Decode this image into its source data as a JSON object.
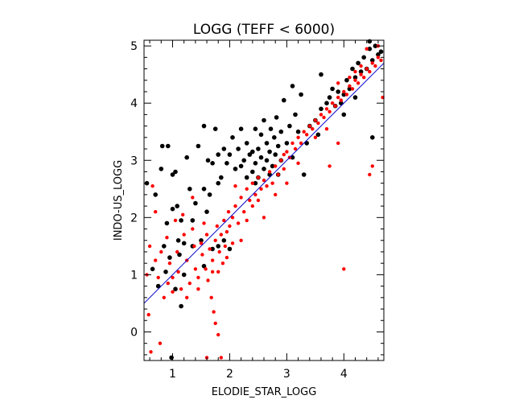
{
  "chart_data": {
    "type": "scatter",
    "title": "LOGG (TEFF < 6000)",
    "xlabel": "ELODIE_STAR_LOGG",
    "ylabel": "INDO-US_LOGG",
    "xlim": [
      0.5,
      4.7
    ],
    "ylim": [
      -0.5,
      5.1
    ],
    "xticks": [
      1,
      2,
      3,
      4
    ],
    "yticks": [
      0,
      1,
      2,
      3,
      4,
      5
    ],
    "grid": false,
    "reference_line": {
      "from": [
        0.5,
        0.5
      ],
      "to": [
        4.7,
        4.7
      ],
      "color": "#0000cc"
    },
    "series": [
      {
        "color": "#000000",
        "points": [
          [
            0.55,
            2.6
          ],
          [
            0.65,
            1.1
          ],
          [
            0.7,
            2.4
          ],
          [
            0.75,
            0.8
          ],
          [
            0.8,
            2.85
          ],
          [
            0.82,
            3.25
          ],
          [
            0.85,
            1.5
          ],
          [
            0.88,
            1.05
          ],
          [
            0.9,
            1.9
          ],
          [
            0.92,
            3.25
          ],
          [
            0.95,
            1.3
          ],
          [
            1.0,
            2.15
          ],
          [
            1.0,
            2.75
          ],
          [
            1.05,
            0.75
          ],
          [
            1.05,
            2.8
          ],
          [
            1.08,
            2.2
          ],
          [
            1.1,
            1.6
          ],
          [
            1.12,
            1.35
          ],
          [
            1.15,
            1.95
          ],
          [
            1.2,
            1.0
          ],
          [
            1.2,
            1.55
          ],
          [
            1.25,
            3.05
          ],
          [
            1.3,
            2.5
          ],
          [
            1.35,
            1.5
          ],
          [
            1.35,
            1.95
          ],
          [
            1.4,
            2.25
          ],
          [
            1.45,
            3.25
          ],
          [
            1.5,
            1.6
          ],
          [
            1.55,
            2.5
          ],
          [
            1.55,
            3.6
          ],
          [
            1.6,
            2.1
          ],
          [
            1.62,
            3.0
          ],
          [
            1.65,
            2.4
          ],
          [
            1.7,
            1.45
          ],
          [
            1.75,
            3.55
          ],
          [
            1.8,
            2.6
          ],
          [
            1.8,
            3.1
          ],
          [
            1.85,
            2.7
          ],
          [
            1.9,
            1.6
          ],
          [
            1.9,
            3.2
          ],
          [
            1.95,
            2.95
          ],
          [
            2.0,
            3.1
          ],
          [
            2.05,
            3.4
          ],
          [
            2.1,
            2.85
          ],
          [
            2.15,
            3.2
          ],
          [
            2.2,
            2.9
          ],
          [
            2.25,
            3.0
          ],
          [
            2.3,
            3.3
          ],
          [
            2.3,
            2.7
          ],
          [
            2.35,
            3.1
          ],
          [
            2.4,
            2.8
          ],
          [
            2.4,
            3.15
          ],
          [
            2.45,
            3.55
          ],
          [
            2.45,
            2.95
          ],
          [
            2.5,
            3.2
          ],
          [
            2.5,
            2.7
          ],
          [
            2.55,
            3.05
          ],
          [
            2.55,
            3.45
          ],
          [
            2.6,
            2.85
          ],
          [
            2.6,
            3.7
          ],
          [
            2.65,
            3.0
          ],
          [
            2.65,
            3.3
          ],
          [
            2.7,
            2.75
          ],
          [
            2.7,
            3.15
          ],
          [
            2.72,
            3.55
          ],
          [
            2.75,
            2.9
          ],
          [
            2.78,
            3.4
          ],
          [
            2.8,
            3.1
          ],
          [
            2.82,
            3.75
          ],
          [
            2.85,
            3.25
          ],
          [
            2.85,
            2.75
          ],
          [
            2.9,
            3.5
          ],
          [
            2.9,
            3.0
          ],
          [
            2.95,
            4.05
          ],
          [
            3.0,
            3.3
          ],
          [
            3.05,
            3.6
          ],
          [
            3.1,
            3.05
          ],
          [
            3.15,
            3.8
          ],
          [
            3.2,
            3.5
          ],
          [
            3.25,
            4.15
          ],
          [
            3.3,
            2.75
          ],
          [
            3.35,
            3.3
          ],
          [
            3.4,
            3.6
          ],
          [
            3.5,
            3.7
          ],
          [
            3.6,
            3.9
          ],
          [
            3.7,
            4.0
          ],
          [
            3.75,
            4.1
          ],
          [
            3.8,
            4.25
          ],
          [
            3.85,
            3.95
          ],
          [
            3.9,
            4.2
          ],
          [
            3.95,
            4.0
          ],
          [
            4.0,
            4.15
          ],
          [
            4.05,
            4.4
          ],
          [
            4.1,
            4.25
          ],
          [
            4.15,
            4.6
          ],
          [
            4.2,
            4.45
          ],
          [
            4.25,
            4.7
          ],
          [
            4.3,
            4.55
          ],
          [
            4.35,
            4.8
          ],
          [
            4.4,
            4.6
          ],
          [
            4.45,
            4.95
          ],
          [
            4.5,
            4.75
          ],
          [
            4.55,
            5.0
          ],
          [
            4.6,
            4.85
          ],
          [
            4.65,
            4.9
          ],
          [
            4.5,
            3.4
          ],
          [
            4.0,
            3.8
          ],
          [
            2.45,
            2.6
          ],
          [
            1.55,
            1.15
          ],
          [
            1.15,
            0.45
          ],
          [
            1.8,
            1.5
          ],
          [
            2.0,
            1.45
          ],
          [
            3.1,
            4.3
          ],
          [
            3.6,
            4.5
          ],
          [
            2.2,
            3.55
          ],
          [
            0.98,
            -0.45
          ],
          [
            1.7,
            2.95
          ],
          [
            3.55,
            3.45
          ],
          [
            4.45,
            5.08
          ],
          [
            4.2,
            4.1
          ]
        ]
      },
      {
        "color": "#ff0000",
        "points": [
          [
            0.55,
            1.0
          ],
          [
            0.58,
            0.3
          ],
          [
            0.6,
            1.5
          ],
          [
            0.62,
            -0.35
          ],
          [
            0.65,
            2.55
          ],
          [
            0.7,
            1.25
          ],
          [
            0.75,
            0.95
          ],
          [
            0.78,
            -0.2
          ],
          [
            0.8,
            1.4
          ],
          [
            0.85,
            0.6
          ],
          [
            0.9,
            1.65
          ],
          [
            0.92,
            0.85
          ],
          [
            0.95,
            1.2
          ],
          [
            1.0,
            0.7
          ],
          [
            1.05,
            1.95
          ],
          [
            1.08,
            1.4
          ],
          [
            1.1,
            1.05
          ],
          [
            1.15,
            0.75
          ],
          [
            1.18,
            2.05
          ],
          [
            1.2,
            1.7
          ],
          [
            1.25,
            1.25
          ],
          [
            1.3,
            0.85
          ],
          [
            1.35,
            1.8
          ],
          [
            1.38,
            1.5
          ],
          [
            1.4,
            1.1
          ],
          [
            1.45,
            0.95
          ],
          [
            1.5,
            1.55
          ],
          [
            1.52,
            1.35
          ],
          [
            1.55,
            1.9
          ],
          [
            1.58,
            1.1
          ],
          [
            1.6,
            1.7
          ],
          [
            1.62,
            0.9
          ],
          [
            1.65,
            1.45
          ],
          [
            1.68,
            0.6
          ],
          [
            1.7,
            1.25
          ],
          [
            1.72,
            0.35
          ],
          [
            1.75,
            1.6
          ],
          [
            1.75,
            0.15
          ],
          [
            1.78,
            1.85
          ],
          [
            1.8,
            1.05
          ],
          [
            1.8,
            -0.05
          ],
          [
            1.82,
            1.4
          ],
          [
            1.85,
            1.7
          ],
          [
            1.88,
            1.2
          ],
          [
            1.9,
            1.95
          ],
          [
            1.92,
            1.5
          ],
          [
            1.95,
            1.75
          ],
          [
            1.98,
            2.1
          ],
          [
            2.0,
            1.85
          ],
          [
            2.05,
            2.0
          ],
          [
            2.1,
            2.2
          ],
          [
            2.15,
            1.9
          ],
          [
            2.2,
            2.35
          ],
          [
            2.25,
            2.1
          ],
          [
            2.3,
            2.5
          ],
          [
            2.35,
            2.3
          ],
          [
            2.4,
            2.6
          ],
          [
            2.45,
            2.4
          ],
          [
            2.5,
            2.7
          ],
          [
            2.55,
            2.5
          ],
          [
            2.6,
            2.65
          ],
          [
            2.65,
            2.55
          ],
          [
            2.7,
            2.8
          ],
          [
            2.75,
            2.6
          ],
          [
            2.8,
            2.9
          ],
          [
            2.85,
            2.75
          ],
          [
            2.9,
            3.0
          ],
          [
            2.95,
            2.85
          ],
          [
            3.0,
            3.15
          ],
          [
            3.05,
            3.05
          ],
          [
            3.1,
            3.3
          ],
          [
            3.15,
            3.2
          ],
          [
            3.2,
            3.4
          ],
          [
            3.25,
            3.3
          ],
          [
            3.3,
            3.5
          ],
          [
            3.35,
            3.45
          ],
          [
            3.4,
            3.6
          ],
          [
            3.45,
            3.55
          ],
          [
            3.5,
            3.7
          ],
          [
            3.55,
            3.65
          ],
          [
            3.6,
            3.8
          ],
          [
            3.65,
            3.75
          ],
          [
            3.7,
            3.9
          ],
          [
            3.75,
            3.85
          ],
          [
            3.8,
            4.0
          ],
          [
            3.85,
            3.95
          ],
          [
            3.9,
            4.1
          ],
          [
            3.95,
            4.05
          ],
          [
            4.0,
            4.2
          ],
          [
            4.05,
            4.15
          ],
          [
            4.1,
            4.3
          ],
          [
            4.15,
            4.25
          ],
          [
            4.2,
            4.4
          ],
          [
            4.25,
            4.35
          ],
          [
            4.3,
            4.5
          ],
          [
            4.35,
            4.45
          ],
          [
            4.4,
            4.6
          ],
          [
            4.45,
            4.55
          ],
          [
            4.5,
            4.7
          ],
          [
            4.55,
            4.65
          ],
          [
            4.6,
            4.8
          ],
          [
            4.65,
            4.75
          ],
          [
            4.68,
            4.1
          ],
          [
            4.5,
            2.9
          ],
          [
            4.45,
            2.75
          ],
          [
            4.0,
            1.1
          ],
          [
            3.9,
            3.3
          ],
          [
            3.75,
            2.9
          ],
          [
            2.6,
            2.0
          ],
          [
            2.8,
            2.4
          ],
          [
            3.0,
            2.6
          ],
          [
            2.2,
            1.6
          ],
          [
            2.4,
            2.2
          ],
          [
            1.95,
            1.3
          ],
          [
            1.6,
            -0.45
          ],
          [
            1.85,
            -0.45
          ],
          [
            2.1,
            2.55
          ],
          [
            0.7,
            2.1
          ],
          [
            1.35,
            2.35
          ],
          [
            4.1,
            4.45
          ],
          [
            4.3,
            4.65
          ],
          [
            4.4,
            4.95
          ],
          [
            4.6,
            5.0
          ],
          [
            3.9,
            4.35
          ],
          [
            4.2,
            4.55
          ],
          [
            3.7,
            3.55
          ],
          [
            3.5,
            3.4
          ],
          [
            2.95,
            3.1
          ],
          [
            3.2,
            2.95
          ],
          [
            2.5,
            2.3
          ],
          [
            2.3,
            1.95
          ],
          [
            2.05,
            1.55
          ],
          [
            1.7,
            1.05
          ],
          [
            1.45,
            0.75
          ],
          [
            1.25,
            0.6
          ],
          [
            1.0,
            0.95
          ]
        ]
      }
    ]
  }
}
